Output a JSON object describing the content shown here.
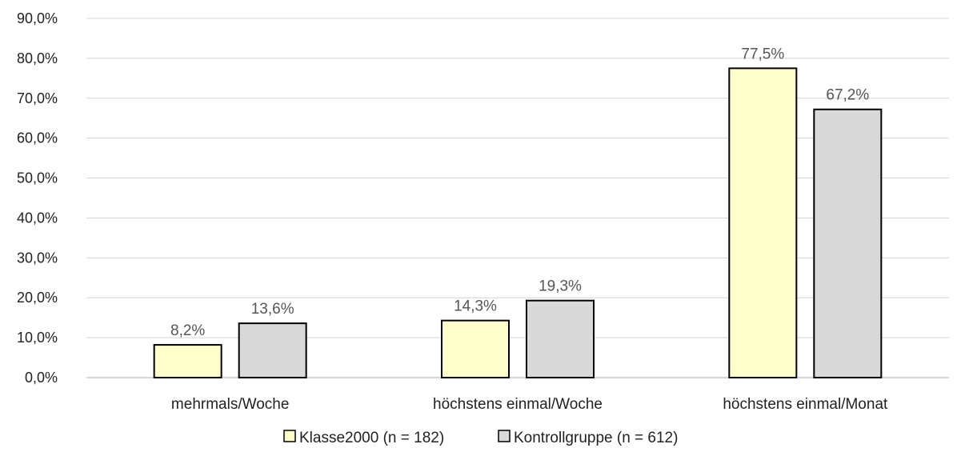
{
  "chart_data": {
    "type": "bar",
    "categories": [
      "mehrmals/Woche",
      "höchstens einmal/Woche",
      "höchstens einmal/Monat"
    ],
    "series": [
      {
        "name": "Klasse2000 (n = 182)",
        "values": [
          8.2,
          14.3,
          77.5
        ],
        "labels": [
          "8,2%",
          "14,3%",
          "77,5%"
        ],
        "color": "#ffffcc"
      },
      {
        "name": "Kontrollgruppe (n = 612)",
        "values": [
          13.6,
          19.3,
          67.2
        ],
        "labels": [
          "13,6%",
          "19,3%",
          "67,2%"
        ],
        "color": "#d9d9d9"
      }
    ],
    "ylim": [
      0,
      90
    ],
    "yticks": [
      "0,0%",
      "10,0%",
      "20,0%",
      "30,0%",
      "40,0%",
      "50,0%",
      "60,0%",
      "70,0%",
      "80,0%",
      "90,0%"
    ],
    "ytick_values": [
      0,
      10,
      20,
      30,
      40,
      50,
      60,
      70,
      80,
      90
    ],
    "grid": true,
    "legend_position": "bottom",
    "bar_border_color": "#000000",
    "title": "",
    "xlabel": "",
    "ylabel": ""
  }
}
